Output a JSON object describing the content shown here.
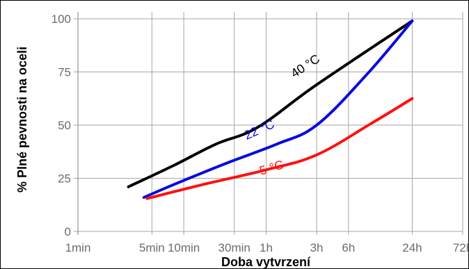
{
  "chart_data": {
    "type": "line",
    "xlabel": "Doba vytvrzení",
    "ylabel": "% Plné pevnosti na oceli",
    "x_scale": "log",
    "x_unit": "min",
    "x_ticks": [
      {
        "label": "1min",
        "value": 1
      },
      {
        "label": "5min",
        "value": 5
      },
      {
        "label": "10min",
        "value": 10
      },
      {
        "label": "30min",
        "value": 30
      },
      {
        "label": "1h",
        "value": 60
      },
      {
        "label": "3h",
        "value": 180
      },
      {
        "label": "6h",
        "value": 360
      },
      {
        "label": "24h",
        "value": 1440
      },
      {
        "label": "72h",
        "value": 4320
      }
    ],
    "y_ticks": [
      0,
      25,
      50,
      75,
      100
    ],
    "ylim": [
      0,
      100
    ],
    "grid": true,
    "series": [
      {
        "name": "40 °C",
        "color": "#000000",
        "points": [
          [
            3,
            21
          ],
          [
            8,
            31
          ],
          [
            20,
            41
          ],
          [
            50,
            49
          ],
          [
            180,
            69
          ],
          [
            1440,
            99
          ]
        ]
      },
      {
        "name": "22 °C",
        "color": "#0a0ae0",
        "points": [
          [
            4.2,
            16
          ],
          [
            8,
            22
          ],
          [
            25,
            32
          ],
          [
            75,
            41
          ],
          [
            180,
            50
          ],
          [
            540,
            74
          ],
          [
            1440,
            99
          ]
        ]
      },
      {
        "name": "5 °C",
        "color": "#ff1010",
        "points": [
          [
            4.5,
            15.5
          ],
          [
            15,
            22
          ],
          [
            60,
            29
          ],
          [
            180,
            36
          ],
          [
            600,
            51
          ],
          [
            1440,
            62.5
          ]
        ]
      }
    ]
  }
}
